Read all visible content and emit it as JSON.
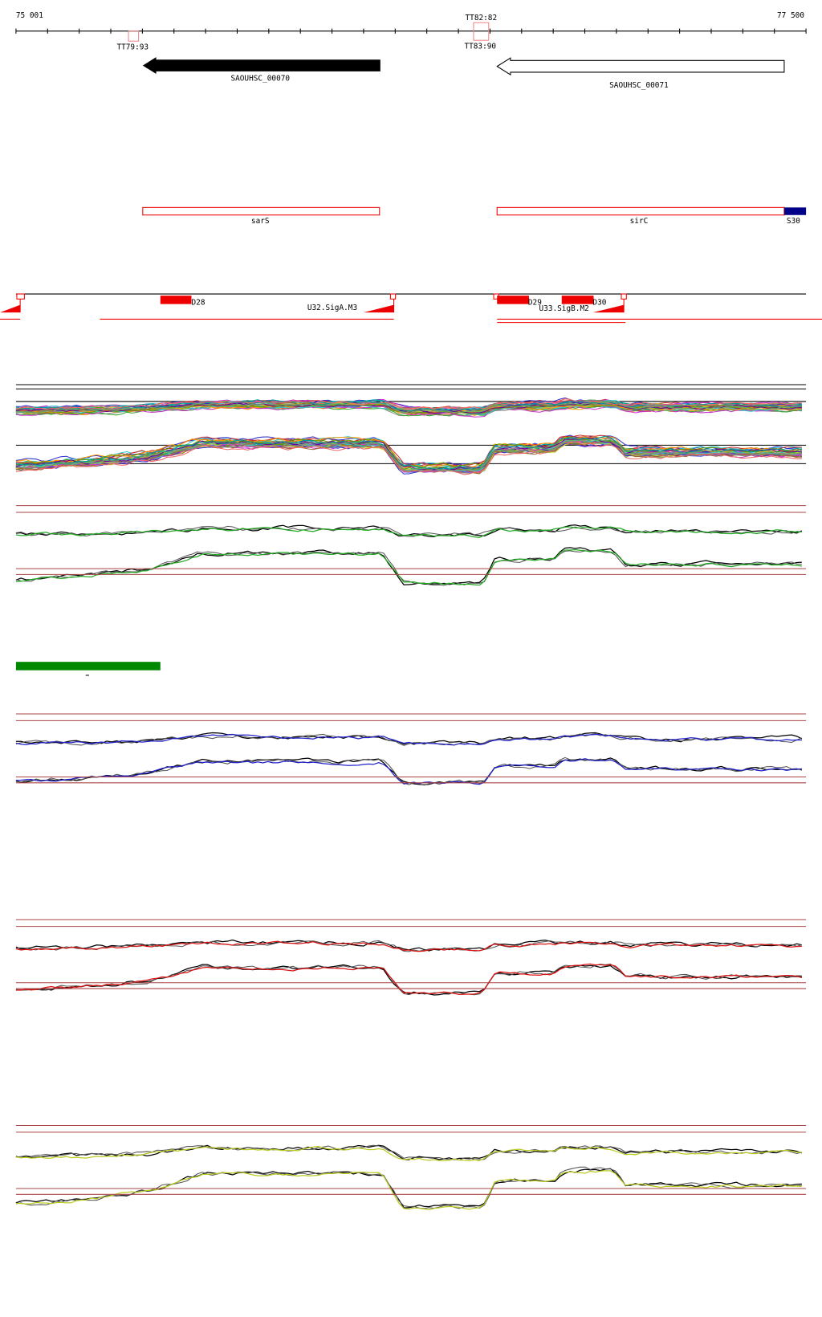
{
  "ruler": {
    "start": "75 001",
    "end": "77 500"
  },
  "terminators": [
    {
      "label": "TT82:82"
    },
    {
      "label": "TT79:93"
    },
    {
      "label": "TT83:90"
    }
  ],
  "genes": [
    {
      "label": "SAOUHSC_00070"
    },
    {
      "label": "SAOUHSC_00071"
    }
  ],
  "features": [
    {
      "label": "sarS"
    },
    {
      "label": "sirC"
    },
    {
      "label": "S30"
    }
  ],
  "segments": [
    {
      "label": "D28"
    },
    {
      "label": "U32.SigA.M3"
    },
    {
      "label": "D29"
    },
    {
      "label": "D30"
    },
    {
      "label": "U33.SigB.M2"
    }
  ]
}
